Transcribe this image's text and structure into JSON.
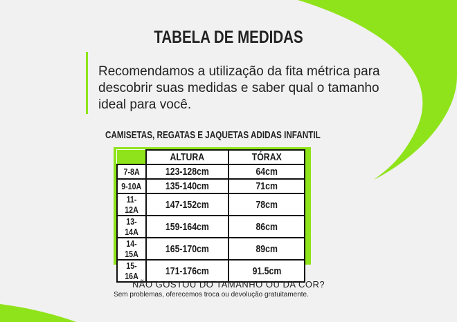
{
  "title": "TABELA DE MEDIDAS",
  "intro": "Recomendamos a utilização da fita métrica para descobrir suas medidas e saber qual o tamanho ideal para você.",
  "table_title": "CAMISETAS, REGATAS E JAQUETAS ADIDAS INFANTIL",
  "columns": [
    "",
    "ALTURA",
    "TÓRAX"
  ],
  "rows": [
    [
      "7-8A",
      "123-128cm",
      "64cm"
    ],
    [
      "9-10A",
      "135-140cm",
      "71cm"
    ],
    [
      "11-12A",
      "147-152cm",
      "78cm"
    ],
    [
      "13-14A",
      "159-164cm",
      "86cm"
    ],
    [
      "14-15A",
      "165-170cm",
      "89cm"
    ],
    [
      "15-16A",
      "171-176cm",
      "91.5cm"
    ]
  ],
  "footer": {
    "question": "NÃO GOSTOU DO TAMANHO OU DA COR?",
    "note": "Sem problemas, oferecemos troca ou devolução gratuitamente."
  },
  "colors": {
    "accent": "#8fe31a",
    "background": "#f1f1f1"
  }
}
